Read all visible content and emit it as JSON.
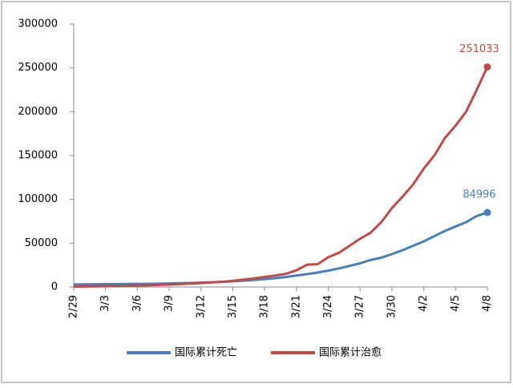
{
  "chart_data": {
    "type": "line",
    "categories": [
      "2/29",
      null,
      null,
      "3/3",
      null,
      null,
      "3/6",
      null,
      null,
      "3/9",
      null,
      null,
      "3/12",
      null,
      null,
      "3/15",
      null,
      null,
      "3/18",
      null,
      null,
      "3/21",
      null,
      null,
      "3/24",
      null,
      null,
      "3/27",
      null,
      null,
      "3/30",
      null,
      null,
      "4/2",
      null,
      null,
      "4/5",
      null,
      null,
      "4/8"
    ],
    "series": [
      {
        "name": "国际累计死亡",
        "color": "#4a7ebb",
        "values": [
          2900,
          3000,
          3100,
          3200,
          3300,
          3400,
          3500,
          3600,
          3800,
          4000,
          4300,
          4600,
          5000,
          5400,
          5800,
          6500,
          7200,
          8000,
          9000,
          10000,
          11400,
          13000,
          14700,
          16500,
          18700,
          21200,
          24000,
          27000,
          30800,
          33500,
          37500,
          42000,
          47000,
          52000,
          58000,
          64000,
          69000,
          74000,
          81000,
          84996
        ]
      },
      {
        "name": "国际累计治愈",
        "color": "#be4b48",
        "values": [
          500,
          600,
          700,
          900,
          1100,
          1400,
          1700,
          2000,
          2400,
          2800,
          3300,
          3900,
          4500,
          5200,
          6000,
          7000,
          8500,
          9800,
          11500,
          13000,
          15000,
          19000,
          25500,
          26000,
          34000,
          39000,
          47000,
          55000,
          62000,
          74000,
          90000,
          103000,
          117000,
          135000,
          150000,
          170000,
          184000,
          200000,
          225000,
          251033
        ]
      }
    ],
    "ylim": [
      0,
      300000
    ],
    "yticks": [
      0,
      50000,
      100000,
      150000,
      200000,
      250000,
      300000
    ],
    "legend": "bottom"
  }
}
